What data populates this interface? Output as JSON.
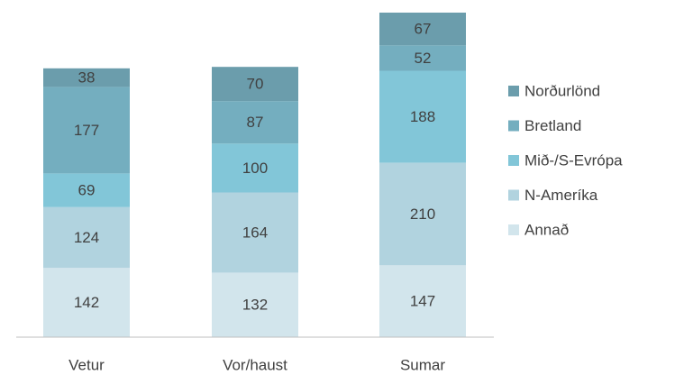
{
  "chart_data": {
    "type": "stacked_bar",
    "categories": [
      "Vetur",
      "Vor/haust",
      "Sumar"
    ],
    "series": [
      {
        "name": "Annað",
        "color": "#d2e5ec",
        "values": [
          142,
          132,
          147
        ]
      },
      {
        "name": "N-Ameríka",
        "color": "#b1d3df",
        "values": [
          124,
          164,
          210
        ]
      },
      {
        "name": "Mið-/S-Evrópa",
        "color": "#82c6d8",
        "values": [
          69,
          100,
          188
        ]
      },
      {
        "name": "Bretland",
        "color": "#74aebf",
        "values": [
          177,
          87,
          52
        ]
      },
      {
        "name": "Norðurlönd",
        "color": "#6b9dac",
        "values": [
          38,
          70,
          67
        ]
      }
    ],
    "legend": "right"
  }
}
